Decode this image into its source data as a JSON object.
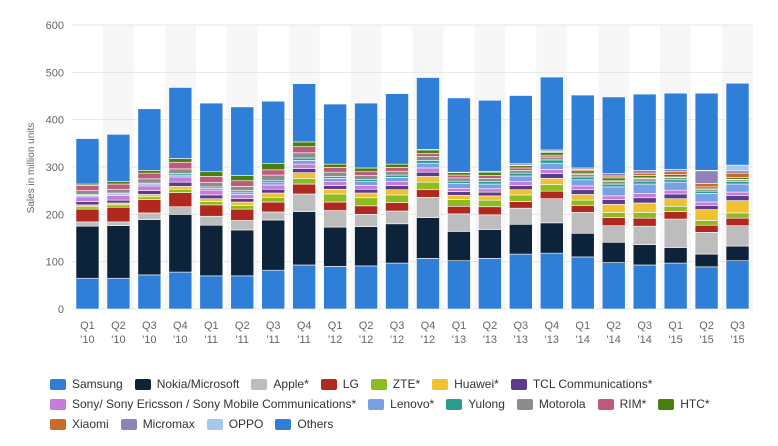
{
  "chart_data": {
    "type": "bar",
    "stacked": true,
    "ylabel": "Sales in million units",
    "ylim": [
      0,
      600
    ],
    "yticks": [
      0,
      100,
      200,
      300,
      400,
      500,
      600
    ],
    "categories": [
      [
        "Q1",
        "'10"
      ],
      [
        "Q2",
        "'10"
      ],
      [
        "Q3",
        "'10"
      ],
      [
        "Q4",
        "'10"
      ],
      [
        "Q1",
        "'11"
      ],
      [
        "Q2",
        "'11"
      ],
      [
        "Q3",
        "'11"
      ],
      [
        "Q4",
        "'11"
      ],
      [
        "Q1",
        "'12"
      ],
      [
        "Q2",
        "'12"
      ],
      [
        "Q3",
        "'12"
      ],
      [
        "Q4",
        "'12"
      ],
      [
        "Q1",
        "'13"
      ],
      [
        "Q2",
        "'13"
      ],
      [
        "Q3",
        "'13"
      ],
      [
        "Q4",
        "'13"
      ],
      [
        "Q1",
        "'14"
      ],
      [
        "Q2",
        "'14"
      ],
      [
        "Q3",
        "'14"
      ],
      [
        "Q1",
        "'15"
      ],
      [
        "Q2",
        "'15"
      ],
      [
        "Q3",
        "'15"
      ]
    ],
    "series": [
      {
        "name": "Samsung",
        "color": "#2f7ed8",
        "values": [
          65,
          65,
          72,
          78,
          70,
          70,
          82,
          93,
          90,
          91,
          97,
          107,
          102,
          107,
          116,
          118,
          110,
          98,
          93,
          97,
          89,
          102
        ]
      },
      {
        "name": "Nokia/Microsoft",
        "color": "#0d233a",
        "values": [
          110,
          111,
          117,
          122,
          107,
          97,
          106,
          113,
          83,
          83,
          83,
          86,
          62,
          61,
          63,
          64,
          50,
          43,
          43,
          33,
          27,
          31
        ]
      },
      {
        "name": "Apple*",
        "color": "#bdbdbd",
        "values": [
          9,
          8,
          14,
          16,
          19,
          20,
          17,
          37,
          35,
          26,
          27,
          43,
          37,
          31,
          34,
          51,
          44,
          35,
          39,
          60,
          46,
          43
        ]
      },
      {
        "name": "LG",
        "color": "#b0281e",
        "values": [
          27,
          31,
          28,
          30,
          24,
          24,
          21,
          21,
          18,
          18,
          18,
          16,
          16,
          17,
          14,
          16,
          15,
          17,
          17,
          16,
          15,
          16
        ]
      },
      {
        "name": "ZTE*",
        "color": "#8bbc21",
        "values": [
          5,
          5,
          6,
          7,
          7,
          8,
          10,
          12,
          17,
          17,
          16,
          16,
          14,
          14,
          14,
          14,
          11,
          11,
          12,
          11,
          10,
          11
        ]
      },
      {
        "name": "Huawei*",
        "color": "#f0c230",
        "values": [
          4,
          4,
          5,
          6,
          6,
          7,
          9,
          12,
          10,
          10,
          11,
          12,
          9,
          9,
          11,
          13,
          12,
          17,
          20,
          16,
          23,
          26
        ]
      },
      {
        "name": "TCL Communications*",
        "color": "#5b3b8c",
        "values": [
          7,
          6,
          8,
          9,
          8,
          7,
          8,
          9,
          8,
          8,
          9,
          9,
          8,
          8,
          9,
          10,
          10,
          10,
          11,
          10,
          9,
          11
        ]
      },
      {
        "name": "Sony/ Sony Ericsson / Sony Mobile Communications*",
        "color": "#c77cdc",
        "values": [
          10,
          10,
          10,
          11,
          10,
          9,
          9,
          9,
          8,
          8,
          8,
          9,
          7,
          7,
          8,
          9,
          8,
          8,
          9,
          8,
          7,
          7
        ]
      },
      {
        "name": "Lenovo*",
        "color": "#77a1e5",
        "values": [
          3,
          3,
          4,
          4,
          4,
          5,
          6,
          8,
          7,
          8,
          9,
          10,
          10,
          10,
          12,
          13,
          13,
          19,
          20,
          17,
          18,
          17
        ]
      },
      {
        "name": "Yulong",
        "color": "#2a9d8f",
        "values": [
          2,
          2,
          2,
          3,
          3,
          3,
          4,
          5,
          4,
          5,
          5,
          6,
          5,
          5,
          6,
          7,
          6,
          6,
          6,
          5,
          5,
          5
        ]
      },
      {
        "name": "Motorola",
        "color": "#8c8c8c",
        "values": [
          8,
          8,
          9,
          10,
          9,
          9,
          11,
          11,
          9,
          8,
          8,
          8,
          7,
          7,
          6,
          6,
          5,
          5,
          5,
          5,
          4,
          4
        ]
      },
      {
        "name": "RIM*",
        "color": "#c05a7c",
        "values": [
          11,
          11,
          12,
          14,
          13,
          12,
          11,
          13,
          10,
          8,
          8,
          7,
          6,
          6,
          5,
          4,
          3,
          2,
          2,
          1,
          1,
          1
        ]
      },
      {
        "name": "HTC*",
        "color": "#4b7f0b",
        "values": [
          3,
          5,
          6,
          8,
          10,
          11,
          13,
          10,
          7,
          8,
          7,
          7,
          5,
          7,
          5,
          6,
          5,
          6,
          5,
          5,
          4,
          4
        ]
      },
      {
        "name": "Xiaomi",
        "color": "#c96a28",
        "values": [
          0,
          0,
          0,
          0,
          0,
          0,
          0,
          0,
          0,
          0,
          0,
          0,
          0,
          0,
          1,
          2,
          3,
          4,
          5,
          6,
          7,
          9
        ]
      },
      {
        "name": "Micromax",
        "color": "#8f82bc",
        "values": [
          0,
          0,
          0,
          0,
          0,
          0,
          0,
          0,
          0,
          0,
          0,
          1,
          1,
          2,
          3,
          3,
          3,
          5,
          6,
          5,
          27,
          5
        ]
      },
      {
        "name": "OPPO",
        "color": "#a7c7ee",
        "values": [
          0,
          0,
          0,
          0,
          0,
          0,
          0,
          0,
          0,
          0,
          0,
          0,
          0,
          0,
          0,
          0,
          0,
          0,
          0,
          0,
          1,
          12
        ]
      },
      {
        "name": "Others",
        "color": "#2f7ed8",
        "values": [
          96,
          100,
          130,
          150,
          145,
          145,
          132,
          123,
          127,
          137,
          149,
          152,
          157,
          150,
          144,
          154,
          154,
          162,
          161,
          161,
          163,
          173
        ]
      }
    ],
    "legend_rows": [
      [
        0,
        1,
        2,
        3,
        4,
        5,
        6
      ],
      [
        7,
        8,
        9,
        10,
        11,
        12
      ],
      [
        13,
        14,
        15,
        16
      ]
    ],
    "colors": {
      "grid": "#e6e6e6",
      "band": "#f7f7f7",
      "tick_text": "#666666"
    }
  }
}
